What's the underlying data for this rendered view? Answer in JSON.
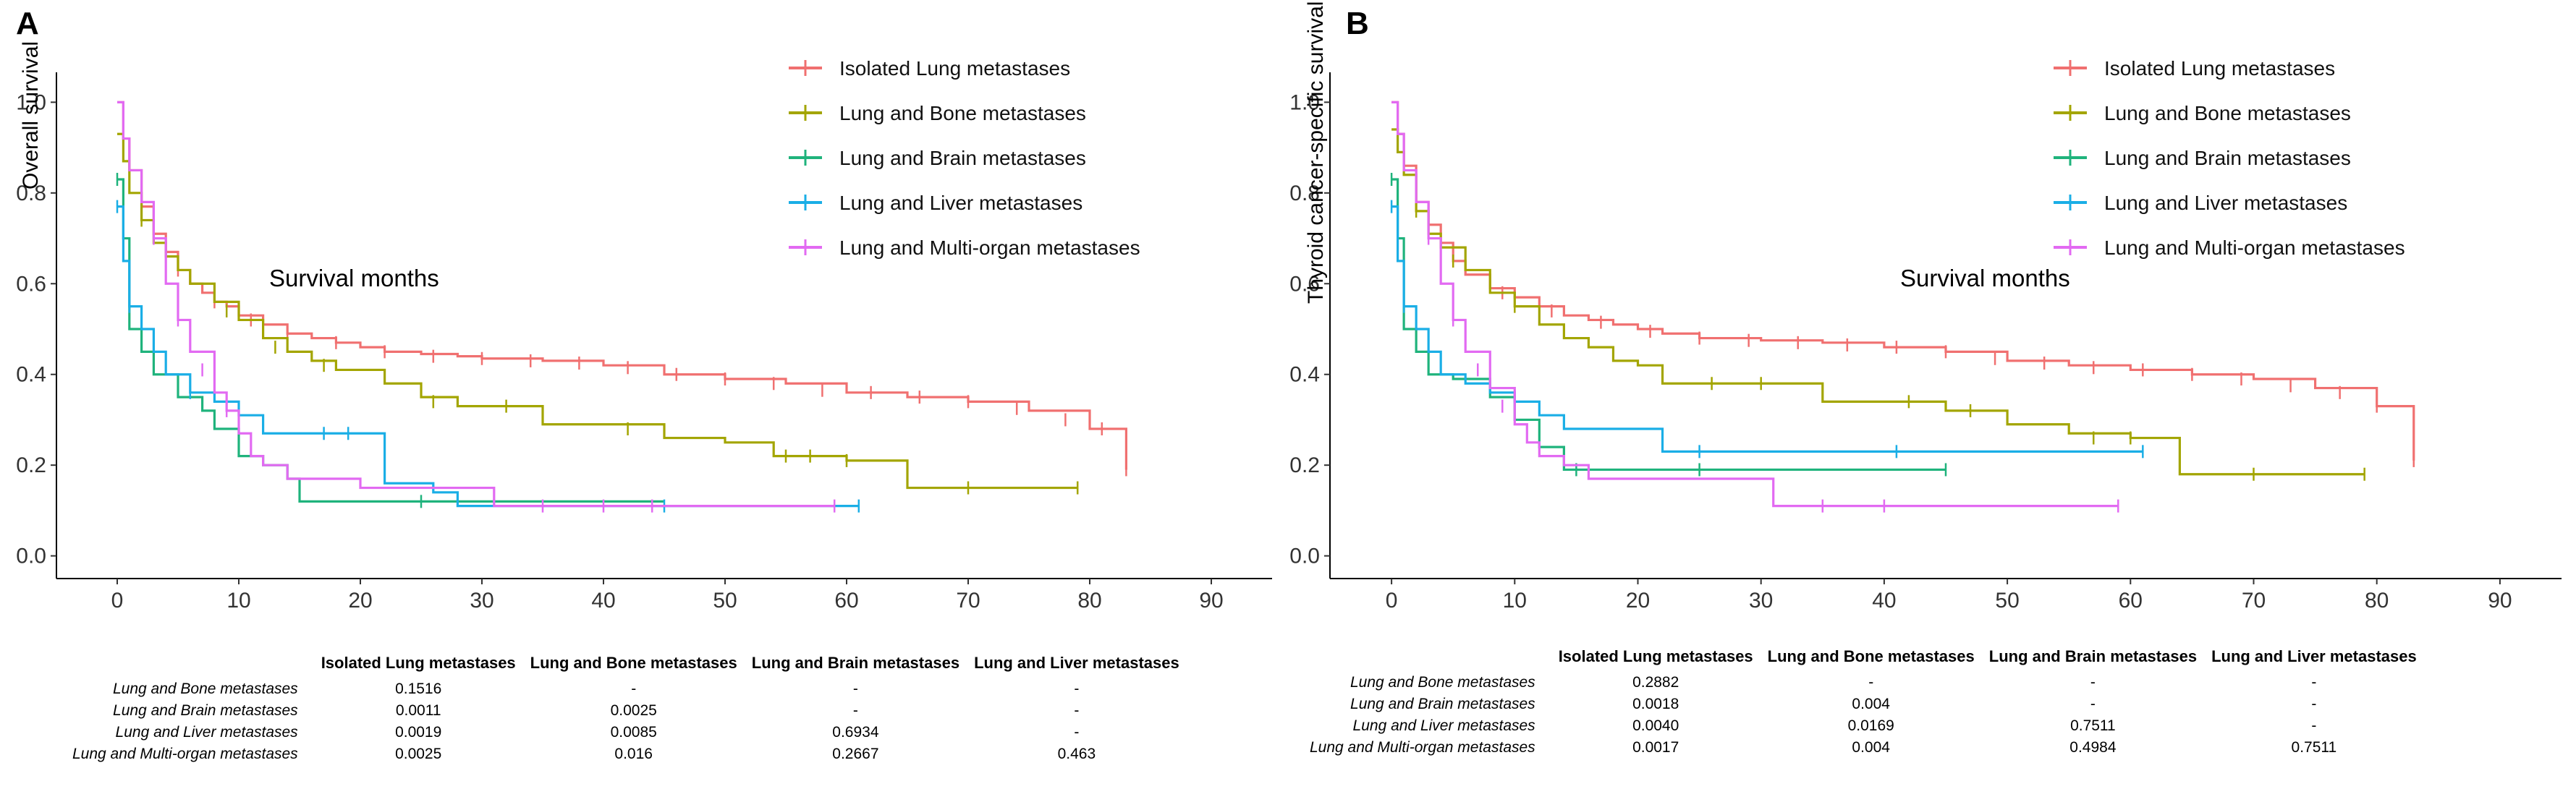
{
  "colors": {
    "isolated": "#F07070",
    "bone": "#A3A500",
    "brain": "#1FB37C",
    "liver": "#1AAEE6",
    "multi": "#E26AF2",
    "axis": "#000000"
  },
  "series_names": [
    "Isolated Lung metastases",
    "Lung and Bone metastases",
    "Lung and Brain metastases",
    "Lung and Liver metastases",
    "Lung and Multi-organ metastases"
  ],
  "chart_data": [
    {
      "type": "line",
      "panel_label": "A",
      "title": "",
      "xlabel": "Survival months",
      "ylabel": "Overall survival",
      "xlim": [
        -5,
        95
      ],
      "ylim": [
        -0.05,
        1.05
      ],
      "xticks": [
        0,
        10,
        20,
        30,
        40,
        50,
        60,
        70,
        80,
        90
      ],
      "yticks": [
        0.0,
        0.2,
        0.4,
        0.6,
        0.8,
        1.0
      ],
      "ytick_labels": [
        "0.0",
        "0.2",
        "0.4",
        "0.6",
        "0.8",
        "1.0"
      ],
      "legend": "top-right",
      "series": [
        {
          "name": "Isolated Lung metastases",
          "color_key": "isolated",
          "x": [
            0,
            0.5,
            1,
            2,
            3,
            4,
            5,
            6,
            7,
            8,
            9,
            10,
            12,
            14,
            16,
            18,
            20,
            22,
            25,
            28,
            30,
            35,
            40,
            45,
            50,
            55,
            60,
            65,
            70,
            75,
            80,
            83,
            83
          ],
          "y": [
            1.0,
            0.92,
            0.85,
            0.77,
            0.71,
            0.67,
            0.63,
            0.6,
            0.58,
            0.56,
            0.55,
            0.53,
            0.51,
            0.49,
            0.48,
            0.47,
            0.46,
            0.45,
            0.445,
            0.44,
            0.435,
            0.43,
            0.42,
            0.4,
            0.39,
            0.38,
            0.36,
            0.35,
            0.34,
            0.32,
            0.28,
            0.28,
            0.19
          ],
          "censors": [
            [
              2,
              0.77
            ],
            [
              5,
              0.63
            ],
            [
              8,
              0.56
            ],
            [
              11,
              0.52
            ],
            [
              14,
              0.49
            ],
            [
              18,
              0.47
            ],
            [
              22,
              0.45
            ],
            [
              26,
              0.44
            ],
            [
              30,
              0.435
            ],
            [
              34,
              0.43
            ],
            [
              38,
              0.425
            ],
            [
              42,
              0.415
            ],
            [
              46,
              0.4
            ],
            [
              50,
              0.39
            ],
            [
              54,
              0.38
            ],
            [
              58,
              0.365
            ],
            [
              62,
              0.36
            ],
            [
              66,
              0.35
            ],
            [
              70,
              0.34
            ],
            [
              74,
              0.325
            ],
            [
              78,
              0.3
            ],
            [
              81,
              0.28
            ],
            [
              83,
              0.19
            ]
          ]
        },
        {
          "name": "Lung and Bone metastases",
          "color_key": "bone",
          "x": [
            0,
            0.5,
            1,
            2,
            3,
            4,
            5,
            6,
            8,
            10,
            12,
            14,
            16,
            18,
            22,
            25,
            28,
            35,
            45,
            50,
            54,
            60,
            65,
            79
          ],
          "y": [
            0.93,
            0.87,
            0.8,
            0.74,
            0.69,
            0.66,
            0.63,
            0.6,
            0.56,
            0.52,
            0.48,
            0.45,
            0.43,
            0.41,
            0.38,
            0.35,
            0.33,
            0.29,
            0.26,
            0.25,
            0.22,
            0.21,
            0.15,
            0.15
          ],
          "censors": [
            [
              2,
              0.74
            ],
            [
              4,
              0.66
            ],
            [
              9,
              0.54
            ],
            [
              13,
              0.46
            ],
            [
              17,
              0.42
            ],
            [
              26,
              0.34
            ],
            [
              32,
              0.33
            ],
            [
              42,
              0.28
            ],
            [
              55,
              0.22
            ],
            [
              57,
              0.22
            ],
            [
              60,
              0.21
            ],
            [
              70,
              0.15
            ],
            [
              79,
              0.15
            ]
          ]
        },
        {
          "name": "Lung and Brain metastases",
          "color_key": "brain",
          "x": [
            0,
            0.5,
            1,
            2,
            3,
            5,
            7,
            8,
            10,
            12,
            14,
            15,
            25,
            45
          ],
          "y": [
            0.83,
            0.7,
            0.5,
            0.45,
            0.4,
            0.35,
            0.32,
            0.28,
            0.22,
            0.2,
            0.17,
            0.12,
            0.12,
            0.12
          ],
          "censors": [
            [
              0,
              0.83
            ],
            [
              25,
              0.12
            ]
          ]
        },
        {
          "name": "Lung and Liver metastases",
          "color_key": "liver",
          "x": [
            0,
            0.5,
            1,
            2,
            3,
            4,
            6,
            8,
            10,
            12,
            16,
            22,
            26,
            28,
            61
          ],
          "y": [
            0.77,
            0.65,
            0.55,
            0.5,
            0.45,
            0.4,
            0.36,
            0.34,
            0.31,
            0.27,
            0.27,
            0.16,
            0.14,
            0.11,
            0.11
          ],
          "censors": [
            [
              0,
              0.77
            ],
            [
              1,
              0.55
            ],
            [
              6,
              0.36
            ],
            [
              17,
              0.27
            ],
            [
              19,
              0.27
            ],
            [
              45,
              0.11
            ],
            [
              61,
              0.11
            ]
          ]
        },
        {
          "name": "Lung and Multi-organ metastases",
          "color_key": "multi",
          "x": [
            0,
            0.5,
            1,
            2,
            3,
            4,
            5,
            6,
            8,
            9,
            10,
            11,
            12,
            14,
            20,
            22,
            28,
            31,
            59
          ],
          "y": [
            1.0,
            0.92,
            0.85,
            0.78,
            0.7,
            0.6,
            0.52,
            0.45,
            0.36,
            0.32,
            0.27,
            0.22,
            0.2,
            0.17,
            0.15,
            0.15,
            0.15,
            0.11,
            0.11
          ],
          "censors": [
            [
              3,
              0.7
            ],
            [
              5,
              0.52
            ],
            [
              7,
              0.41
            ],
            [
              9,
              0.32
            ],
            [
              35,
              0.11
            ],
            [
              40,
              0.11
            ],
            [
              44,
              0.11
            ],
            [
              59,
              0.11
            ]
          ]
        }
      ]
    },
    {
      "type": "line",
      "panel_label": "B",
      "title": "",
      "xlabel": "Survival months",
      "ylabel": "Thyroid cancer-specific survival",
      "xlim": [
        -5,
        95
      ],
      "ylim": [
        -0.05,
        1.05
      ],
      "xticks": [
        0,
        10,
        20,
        30,
        40,
        50,
        60,
        70,
        80,
        90
      ],
      "yticks": [
        0.0,
        0.2,
        0.4,
        0.6,
        0.8,
        1.0
      ],
      "ytick_labels": [
        "0.0",
        "0.2",
        "0.4",
        "0.6",
        "0.8",
        "1.0"
      ],
      "legend": "top-right",
      "series": [
        {
          "name": "Isolated Lung metastases",
          "color_key": "isolated",
          "x": [
            0,
            0.5,
            1,
            2,
            3,
            4,
            5,
            6,
            8,
            10,
            12,
            14,
            16,
            18,
            20,
            22,
            25,
            30,
            35,
            40,
            45,
            50,
            55,
            60,
            65,
            70,
            75,
            80,
            83,
            83
          ],
          "y": [
            1.0,
            0.93,
            0.86,
            0.78,
            0.73,
            0.69,
            0.65,
            0.62,
            0.59,
            0.57,
            0.55,
            0.53,
            0.52,
            0.51,
            0.5,
            0.49,
            0.48,
            0.475,
            0.47,
            0.46,
            0.45,
            0.43,
            0.42,
            0.41,
            0.4,
            0.39,
            0.37,
            0.33,
            0.33,
            0.21
          ],
          "censors": [
            [
              2,
              0.78
            ],
            [
              5,
              0.65
            ],
            [
              9,
              0.58
            ],
            [
              13,
              0.54
            ],
            [
              17,
              0.515
            ],
            [
              21,
              0.495
            ],
            [
              25,
              0.48
            ],
            [
              29,
              0.475
            ],
            [
              33,
              0.47
            ],
            [
              37,
              0.465
            ],
            [
              41,
              0.46
            ],
            [
              45,
              0.45
            ],
            [
              49,
              0.435
            ],
            [
              53,
              0.425
            ],
            [
              57,
              0.415
            ],
            [
              61,
              0.41
            ],
            [
              65,
              0.4
            ],
            [
              69,
              0.39
            ],
            [
              73,
              0.375
            ],
            [
              77,
              0.36
            ],
            [
              80,
              0.33
            ],
            [
              83,
              0.21
            ]
          ]
        },
        {
          "name": "Lung and Bone metastases",
          "color_key": "bone",
          "x": [
            0,
            0.5,
            1,
            2,
            3,
            4,
            6,
            8,
            10,
            12,
            14,
            16,
            18,
            20,
            22,
            25,
            35,
            45,
            50,
            55,
            60,
            64,
            79
          ],
          "y": [
            0.94,
            0.89,
            0.84,
            0.76,
            0.71,
            0.68,
            0.63,
            0.58,
            0.55,
            0.51,
            0.48,
            0.46,
            0.43,
            0.42,
            0.38,
            0.38,
            0.34,
            0.32,
            0.29,
            0.27,
            0.26,
            0.18,
            0.18
          ],
          "censors": [
            [
              2,
              0.76
            ],
            [
              5,
              0.65
            ],
            [
              10,
              0.55
            ],
            [
              26,
              0.38
            ],
            [
              30,
              0.38
            ],
            [
              42,
              0.34
            ],
            [
              47,
              0.32
            ],
            [
              57,
              0.26
            ],
            [
              60,
              0.26
            ],
            [
              70,
              0.18
            ],
            [
              79,
              0.18
            ]
          ]
        },
        {
          "name": "Lung and Brain metastases",
          "color_key": "brain",
          "x": [
            0,
            0.5,
            1,
            2,
            3,
            5,
            8,
            10,
            12,
            14,
            45
          ],
          "y": [
            0.83,
            0.7,
            0.5,
            0.45,
            0.4,
            0.39,
            0.35,
            0.3,
            0.24,
            0.19,
            0.19
          ],
          "censors": [
            [
              0,
              0.83
            ],
            [
              15,
              0.19
            ],
            [
              25,
              0.19
            ],
            [
              45,
              0.19
            ]
          ]
        },
        {
          "name": "Lung and Liver metastases",
          "color_key": "liver",
          "x": [
            0,
            0.5,
            1,
            2,
            3,
            4,
            6,
            8,
            10,
            12,
            14,
            20,
            22,
            61
          ],
          "y": [
            0.77,
            0.65,
            0.55,
            0.5,
            0.45,
            0.4,
            0.38,
            0.36,
            0.34,
            0.31,
            0.28,
            0.28,
            0.23,
            0.23
          ],
          "censors": [
            [
              0,
              0.77
            ],
            [
              1,
              0.55
            ],
            [
              25,
              0.23
            ],
            [
              41,
              0.23
            ],
            [
              61,
              0.23
            ]
          ]
        },
        {
          "name": "Lung and Multi-organ metastases",
          "color_key": "multi",
          "x": [
            0,
            0.5,
            1,
            2,
            3,
            4,
            5,
            6,
            8,
            10,
            11,
            12,
            14,
            16,
            20,
            31,
            59
          ],
          "y": [
            1.0,
            0.93,
            0.85,
            0.78,
            0.7,
            0.6,
            0.52,
            0.45,
            0.37,
            0.29,
            0.25,
            0.22,
            0.2,
            0.17,
            0.17,
            0.11,
            0.11
          ],
          "censors": [
            [
              3,
              0.7
            ],
            [
              5,
              0.52
            ],
            [
              7,
              0.41
            ],
            [
              9,
              0.33
            ],
            [
              35,
              0.11
            ],
            [
              40,
              0.11
            ],
            [
              59,
              0.11
            ]
          ]
        }
      ]
    }
  ],
  "tables": [
    {
      "columns": [
        "Isolated Lung metastases",
        "Lung and Bone metastases",
        "Lung and Brain metastases",
        "Lung and Liver metastases"
      ],
      "rows": [
        {
          "label": "Lung and Bone metastases",
          "values": [
            "0.1516",
            "-",
            "-",
            "-"
          ]
        },
        {
          "label": "Lung and Brain metastases",
          "values": [
            "0.0011",
            "0.0025",
            "-",
            "-"
          ]
        },
        {
          "label": "Lung and Liver metastases",
          "values": [
            "0.0019",
            "0.0085",
            "0.6934",
            "-"
          ]
        },
        {
          "label": "Lung and Multi-organ metastases",
          "values": [
            "0.0025",
            "0.016",
            "0.2667",
            "0.463"
          ]
        }
      ]
    },
    {
      "columns": [
        "Isolated Lung metastases",
        "Lung and Bone metastases",
        "Lung and Brain metastases",
        "Lung and Liver metastases"
      ],
      "rows": [
        {
          "label": "Lung and Bone metastases",
          "values": [
            "0.2882",
            "-",
            "-",
            "-"
          ]
        },
        {
          "label": "Lung and Brain metastases",
          "values": [
            "0.0018",
            "0.004",
            "-",
            "-"
          ]
        },
        {
          "label": "Lung and Liver metastases",
          "values": [
            "0.0040",
            "0.0169",
            "0.7511",
            "-"
          ]
        },
        {
          "label": "Lung and Multi-organ metastases",
          "values": [
            "0.0017",
            "0.004",
            "0.4984",
            "0.7511"
          ]
        }
      ]
    }
  ]
}
